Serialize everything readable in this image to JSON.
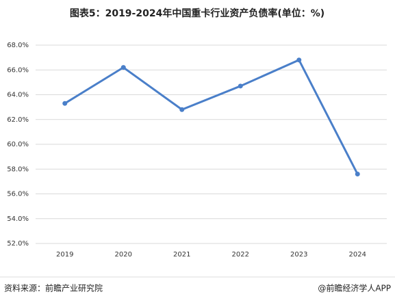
{
  "chart_data": {
    "type": "line",
    "title": "图表5：2019-2024年中国重卡行业资产负债率(单位：%)",
    "categories": [
      "2019",
      "2020",
      "2021",
      "2022",
      "2023",
      "2024"
    ],
    "values": [
      63.3,
      66.2,
      62.8,
      64.7,
      66.8,
      57.6
    ],
    "color": "#4a7fc9",
    "ylim": [
      52,
      68
    ],
    "yticks": [
      {
        "value": 52,
        "label": "52.0%"
      },
      {
        "value": 54,
        "label": "54.0%"
      },
      {
        "value": 56,
        "label": "56.0%"
      },
      {
        "value": 58,
        "label": "58.0%"
      },
      {
        "value": 60,
        "label": "60.0%"
      },
      {
        "value": 62,
        "label": "62.0%"
      },
      {
        "value": 64,
        "label": "64.0%"
      },
      {
        "value": 66,
        "label": "66.0%"
      },
      {
        "value": 68,
        "label": "68.0%"
      }
    ],
    "grid": true,
    "source": "资料来源：前瞻产业研究院",
    "credit": "@前瞻经济学人APP"
  }
}
